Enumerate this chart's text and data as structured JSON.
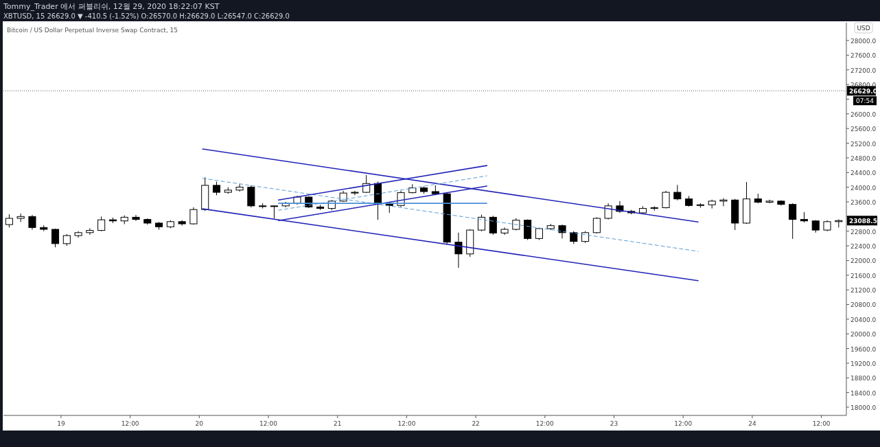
{
  "chart_data": {
    "type": "candlestick",
    "title": "Bitcoin / US Dollar Perpetual Inverse Swap Contract, 15",
    "annotations": [
      "Tommy_Trader 에서 퍼블리쉬, 12월 29, 2020 18:22:07 KST",
      "XBTUSD, 15 26629.0 ▼ -410.5 (-1.52%) O:26570.0 H:26629.0 L:26547.0 C:26629.0",
      "USD",
      "07:54",
      {
        "text": "23088.5",
        "y": 23088.5
      }
    ],
    "x": [
      "2020-12-18T15:00",
      "2020-12-18T17:00",
      "2020-12-18T19:00",
      "2020-12-18T21:00",
      "2020-12-18T23:00",
      "2020-12-19T01:00",
      "2020-12-19T03:00",
      "2020-12-19T05:00",
      "2020-12-19T07:00",
      "2020-12-19T09:00",
      "2020-12-19T11:00",
      "2020-12-19T13:00",
      "2020-12-19T15:00",
      "2020-12-19T17:00",
      "2020-12-19T19:00",
      "2020-12-19T21:00",
      "2020-12-19T23:00",
      "2020-12-20T01:00",
      "2020-12-20T03:00",
      "2020-12-20T05:00",
      "2020-12-20T07:00",
      "2020-12-20T09:00",
      "2020-12-20T11:00",
      "2020-12-20T13:00",
      "2020-12-20T15:00",
      "2020-12-20T17:00",
      "2020-12-20T19:00",
      "2020-12-20T21:00",
      "2020-12-20T23:00",
      "2020-12-21T01:00",
      "2020-12-21T03:00",
      "2020-12-21T05:00",
      "2020-12-21T07:00",
      "2020-12-21T09:00",
      "2020-12-21T11:00",
      "2020-12-21T13:00",
      "2020-12-21T15:00",
      "2020-12-21T17:00",
      "2020-12-21T19:00",
      "2020-12-21T21:00",
      "2020-12-21T23:00",
      "2020-12-22T01:00",
      "2020-12-22T03:00",
      "2020-12-22T05:00",
      "2020-12-22T07:00",
      "2020-12-22T09:00",
      "2020-12-22T11:00",
      "2020-12-22T13:00",
      "2020-12-22T15:00",
      "2020-12-22T17:00",
      "2020-12-22T19:00",
      "2020-12-22T21:00",
      "2020-12-22T23:00",
      "2020-12-23T01:00",
      "2020-12-23T03:00",
      "2020-12-23T05:00",
      "2020-12-23T07:00",
      "2020-12-23T09:00",
      "2020-12-23T11:00",
      "2020-12-23T13:00",
      "2020-12-23T15:00",
      "2020-12-23T17:00",
      "2020-12-23T19:00",
      "2020-12-23T21:00",
      "2020-12-23T23:00",
      "2020-12-24T01:00",
      "2020-12-24T03:00",
      "2020-12-24T05:00",
      "2020-12-24T07:00",
      "2020-12-24T09:00",
      "2020-12-24T11:00",
      "2020-12-24T13:00",
      "2020-12-24T15:00"
    ],
    "ohlc": [
      [
        22980,
        23260,
        22900,
        23150
      ],
      [
        23150,
        23280,
        23050,
        23200
      ],
      [
        23200,
        23240,
        22840,
        22900
      ],
      [
        22900,
        22960,
        22800,
        22850
      ],
      [
        22850,
        22870,
        22360,
        22460
      ],
      [
        22460,
        22720,
        22400,
        22680
      ],
      [
        22680,
        22800,
        22620,
        22760
      ],
      [
        22760,
        22880,
        22700,
        22820
      ],
      [
        22820,
        23200,
        22800,
        23110
      ],
      [
        23110,
        23170,
        23020,
        23080
      ],
      [
        23080,
        23230,
        22990,
        23180
      ],
      [
        23180,
        23240,
        23080,
        23120
      ],
      [
        23120,
        23150,
        22980,
        23020
      ],
      [
        23020,
        23050,
        22840,
        22920
      ],
      [
        22920,
        23100,
        22880,
        23060
      ],
      [
        23060,
        23100,
        22950,
        23000
      ],
      [
        23000,
        23450,
        22980,
        23390
      ],
      [
        23390,
        24270,
        23350,
        24050
      ],
      [
        24050,
        24150,
        23780,
        23860
      ],
      [
        23860,
        24000,
        23820,
        23920
      ],
      [
        23920,
        24080,
        23880,
        24000
      ],
      [
        24000,
        24050,
        23450,
        23490
      ],
      [
        23490,
        23560,
        23420,
        23480
      ],
      [
        23480,
        23500,
        23150,
        23490
      ],
      [
        23490,
        23600,
        23450,
        23560
      ],
      [
        23560,
        23770,
        23520,
        23730
      ],
      [
        23730,
        23750,
        23430,
        23460
      ],
      [
        23460,
        23520,
        23380,
        23420
      ],
      [
        23420,
        23650,
        23370,
        23620
      ],
      [
        23620,
        23900,
        23600,
        23840
      ],
      [
        23840,
        23900,
        23780,
        23860
      ],
      [
        23860,
        24330,
        23840,
        24100
      ],
      [
        24100,
        24150,
        23110,
        23540
      ],
      [
        23540,
        23600,
        23300,
        23500
      ],
      [
        23500,
        23900,
        23460,
        23850
      ],
      [
        23850,
        24080,
        23830,
        23980
      ],
      [
        23980,
        24020,
        23820,
        23880
      ],
      [
        23880,
        24050,
        23800,
        23820
      ],
      [
        23820,
        23850,
        22450,
        22500
      ],
      [
        22500,
        22760,
        21800,
        22180
      ],
      [
        22180,
        22850,
        22100,
        22830
      ],
      [
        22830,
        23250,
        22800,
        23180
      ],
      [
        23180,
        23220,
        22700,
        22750
      ],
      [
        22750,
        22900,
        22700,
        22850
      ],
      [
        22850,
        23150,
        22820,
        23100
      ],
      [
        23100,
        23120,
        22560,
        22600
      ],
      [
        22600,
        22880,
        22560,
        22870
      ],
      [
        22870,
        23000,
        22830,
        22950
      ],
      [
        22950,
        22980,
        22600,
        22760
      ],
      [
        22760,
        22800,
        22450,
        22520
      ],
      [
        22520,
        22800,
        22480,
        22760
      ],
      [
        22760,
        23180,
        22740,
        23150
      ],
      [
        23150,
        23560,
        23120,
        23490
      ],
      [
        23490,
        23620,
        23300,
        23340
      ],
      [
        23340,
        23380,
        23260,
        23300
      ],
      [
        23300,
        23480,
        23280,
        23420
      ],
      [
        23420,
        23480,
        23360,
        23440
      ],
      [
        23440,
        23900,
        23420,
        23860
      ],
      [
        23860,
        24060,
        23640,
        23680
      ],
      [
        23680,
        23760,
        23470,
        23500
      ],
      [
        23500,
        23560,
        23440,
        23520
      ],
      [
        23520,
        23660,
        23420,
        23620
      ],
      [
        23620,
        23700,
        23480,
        23650
      ],
      [
        23650,
        23680,
        22830,
        23020
      ],
      [
        23020,
        24140,
        23000,
        23680
      ],
      [
        23680,
        23820,
        23560,
        23590
      ],
      [
        23590,
        23660,
        23560,
        23620
      ],
      [
        23620,
        23640,
        23500,
        23530
      ],
      [
        23530,
        23560,
        22590,
        23120
      ],
      [
        23120,
        23320,
        23040,
        23080
      ],
      [
        23080,
        23100,
        22760,
        22830
      ],
      [
        22830,
        23100,
        22800,
        23060
      ],
      [
        23060,
        23120,
        22900,
        23088.5
      ]
    ],
    "series": [
      {
        "type": "line",
        "color": "#2323b8",
        "x": [
          "2020-12-20T00:35",
          "2020-12-23T14:35"
        ],
        "values": [
          25040,
          23050
        ]
      },
      {
        "type": "line",
        "color": "#2323b8",
        "x": [
          "2020-12-20T00:35",
          "2020-12-23T14:35"
        ],
        "values": [
          23410,
          21450
        ]
      },
      {
        "type": "line",
        "color": "#5b9bd5",
        "line_style": "dashed",
        "x": [
          "2020-12-20T00:35",
          "2020-12-23T14:35"
        ],
        "values": [
          24240,
          22250
        ]
      },
      {
        "type": "line",
        "color": "#2323b8",
        "x": [
          "2020-12-20T13:45",
          "2020-12-22T01:55"
        ],
        "values": [
          23650,
          24590
        ]
      },
      {
        "type": "line",
        "color": "#2323b8",
        "x": [
          "2020-12-20T13:45",
          "2020-12-22T01:55"
        ],
        "values": [
          23090,
          24030
        ]
      },
      {
        "type": "line",
        "color": "#5b9bd5",
        "line_style": "dashed",
        "x": [
          "2020-12-20T13:45",
          "2020-12-22T01:55"
        ],
        "values": [
          23370,
          24310
        ]
      },
      {
        "type": "line",
        "color": "#4a90d9",
        "x": [
          "2020-12-20T13:45",
          "2020-12-22T01:55"
        ],
        "values": [
          23560,
          23560
        ]
      }
    ],
    "ref_lines": [
      {
        "axis": "y",
        "value": 26629,
        "label": "26629.0",
        "color": "#555555",
        "line_style": "dotted"
      }
    ],
    "xlim": [
      "2020-12-18T14:00",
      "2020-12-24T16:20"
    ],
    "xticks": [
      {
        "value": "2020-12-19",
        "label": "19"
      },
      {
        "value": "2020-12-19T12:00",
        "label": "12:00"
      },
      {
        "value": "2020-12-20",
        "label": "20"
      },
      {
        "value": "2020-12-20T12:00",
        "label": "12:00"
      },
      {
        "value": "2020-12-21",
        "label": "21"
      },
      {
        "value": "2020-12-21T12:00",
        "label": "12:00"
      },
      {
        "value": "2020-12-22",
        "label": "22"
      },
      {
        "value": "2020-12-22T12:00",
        "label": "12:00"
      },
      {
        "value": "2020-12-23",
        "label": "23"
      },
      {
        "value": "2020-12-23T12:00",
        "label": "12:00"
      },
      {
        "value": "2020-12-24",
        "label": "24"
      },
      {
        "value": "2020-12-24T12:00",
        "label": "12:00"
      }
    ],
    "ylim": [
      17775,
      28487
    ],
    "yticks": [
      {
        "value": 18000,
        "label": "18000.0"
      },
      {
        "value": 18400,
        "label": "18400.0"
      },
      {
        "value": 18800,
        "label": "18800.0"
      },
      {
        "value": 19200,
        "label": "19200.0"
      },
      {
        "value": 19600,
        "label": "19600.0"
      },
      {
        "value": 20000,
        "label": "20000.0"
      },
      {
        "value": 20400,
        "label": "20400.0"
      },
      {
        "value": 20800,
        "label": "20800.0"
      },
      {
        "value": 21200,
        "label": "21200.0"
      },
      {
        "value": 21600,
        "label": "21600.0"
      },
      {
        "value": 22000,
        "label": "22000.0"
      },
      {
        "value": 22400,
        "label": "22400.0"
      },
      {
        "value": 22800,
        "label": "22800.0"
      },
      {
        "value": 23200,
        "label": null
      },
      {
        "value": 23600,
        "label": "23600.0"
      },
      {
        "value": 24000,
        "label": "24000.0"
      },
      {
        "value": 24400,
        "label": "24400.0"
      },
      {
        "value": 24800,
        "label": "24800.0"
      },
      {
        "value": 25200,
        "label": "25200.0"
      },
      {
        "value": 25600,
        "label": "25600.0"
      },
      {
        "value": 26000,
        "label": "26000.0"
      },
      {
        "value": 26400,
        "label": null
      },
      {
        "value": 26800,
        "label": "26800.0"
      },
      {
        "value": 27200,
        "label": "27200.0"
      },
      {
        "value": 27600,
        "label": "27600.0"
      },
      {
        "value": 28000,
        "label": "28000.0"
      }
    ],
    "grid": false
  }
}
